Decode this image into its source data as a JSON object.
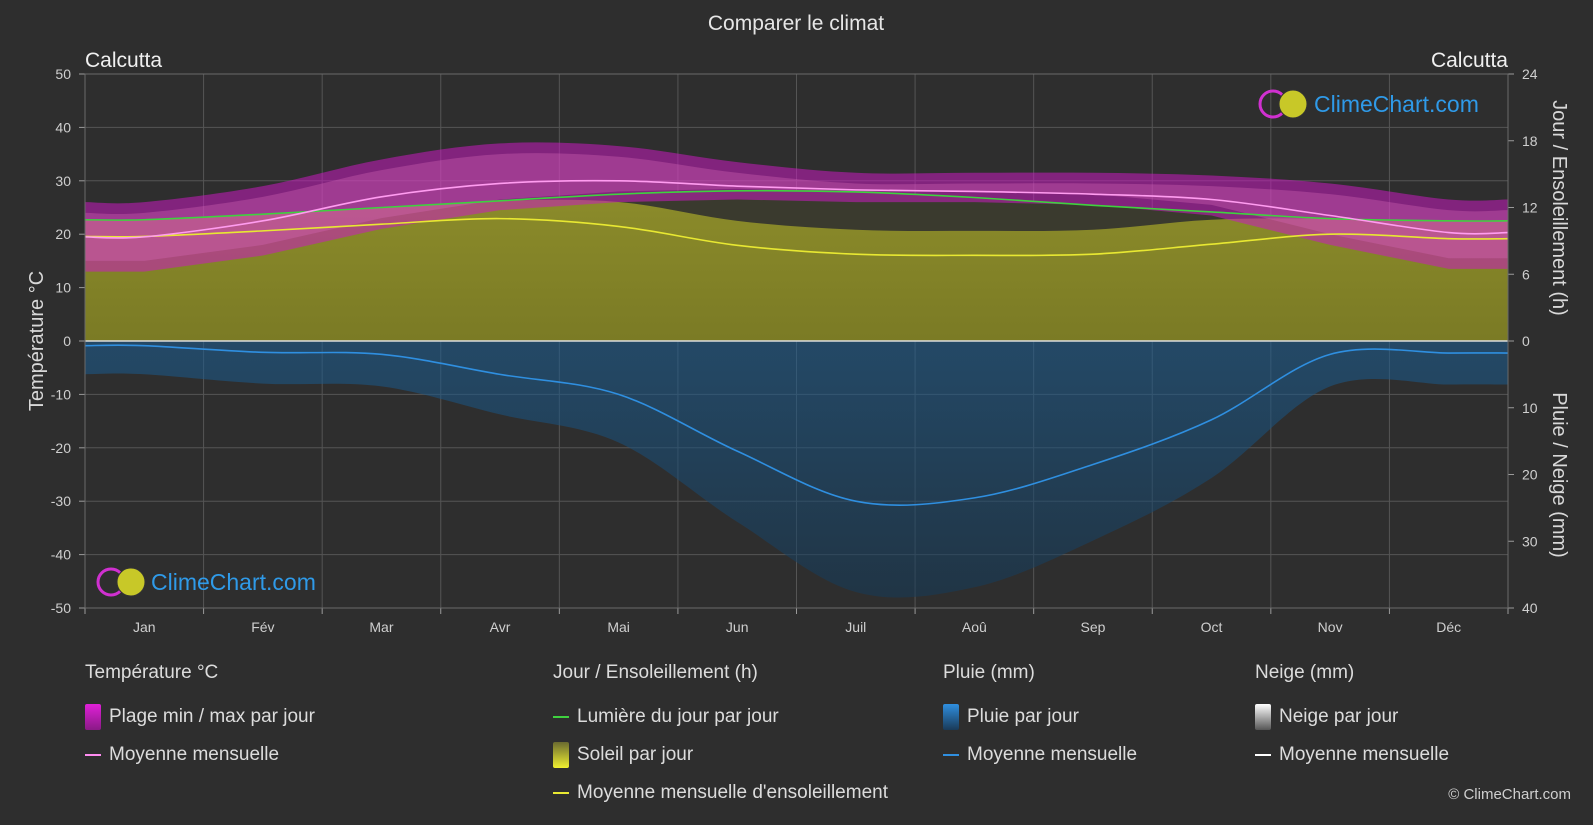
{
  "title": "Comparer le climat",
  "location_left": "Calcutta",
  "location_right": "Calcutta",
  "axis_left_label": "Température °C",
  "axis_right_top_label": "Jour / Ensoleillement (h)",
  "axis_right_bottom_label": "Pluie / Neige (mm)",
  "watermark": "ClimeChart.com",
  "copyright": "© ClimeChart.com",
  "colors": {
    "background": "#2e2e2e",
    "temp_range": "#d020c8",
    "temp_mean": "#ff8cf0",
    "daylight": "#3fd13f",
    "sunshine_fill": "#a8a830",
    "sunshine_mean": "#e8e832",
    "rain_fill": "#1a6aa8",
    "rain_mean": "#2f8fe0",
    "brand": "#2f9ae8"
  },
  "legend": {
    "temperature": {
      "header": "Température °C",
      "range": "Plage min / max par jour",
      "mean": "Moyenne mensuelle"
    },
    "sun": {
      "header": "Jour / Ensoleillement (h)",
      "daylight": "Lumière du jour par jour",
      "sunshine": "Soleil par jour",
      "sunshine_mean": "Moyenne mensuelle d'ensoleillement"
    },
    "rain": {
      "header": "Pluie (mm)",
      "daily": "Pluie par jour",
      "mean": "Moyenne mensuelle"
    },
    "snow": {
      "header": "Neige (mm)",
      "daily": "Neige par jour",
      "mean": "Moyenne mensuelle"
    }
  },
  "chart_data": {
    "type": "area",
    "months": [
      "Jan",
      "Fév",
      "Mar",
      "Avr",
      "Mai",
      "Jun",
      "Juil",
      "Aoû",
      "Sep",
      "Oct",
      "Nov",
      "Déc"
    ],
    "temp_axis": {
      "min": -50,
      "max": 50,
      "ticks": [
        50,
        40,
        30,
        20,
        10,
        0,
        -10,
        -20,
        -30,
        -40,
        -50
      ]
    },
    "sun_axis": {
      "min": 0,
      "max": 24,
      "ticks": [
        24,
        18,
        12,
        6,
        0
      ]
    },
    "rain_axis": {
      "min": 0,
      "max": 40,
      "ticks": [
        0,
        10,
        20,
        30,
        40
      ]
    },
    "series": [
      {
        "name": "Moyenne mensuelle",
        "unit": "°C",
        "values": [
          19.5,
          22.5,
          27,
          29.5,
          30,
          29,
          28.3,
          28,
          27.5,
          26.5,
          23.5,
          20.3
        ]
      },
      {
        "name": "Plage min / max par jour (min)",
        "unit": "°C",
        "values": [
          13,
          16,
          21,
          24.5,
          26,
          26.5,
          26,
          26,
          25.5,
          23.5,
          18,
          13.5
        ]
      },
      {
        "name": "Plage min / max par jour (max)",
        "unit": "°C",
        "values": [
          26,
          29,
          34,
          37,
          36.5,
          33.5,
          31.5,
          31.5,
          31.5,
          31,
          29.5,
          26.5
        ]
      },
      {
        "name": "Lumière du jour par jour",
        "unit": "h",
        "values": [
          10.9,
          11.4,
          12,
          12.6,
          13.2,
          13.5,
          13.4,
          12.9,
          12.2,
          11.6,
          11.0,
          10.8
        ]
      },
      {
        "name": "Moyenne mensuelle d'ensoleillement",
        "unit": "h",
        "values": [
          9.4,
          9.9,
          10.5,
          11.0,
          10.3,
          8.6,
          7.8,
          7.7,
          7.8,
          8.7,
          9.6,
          9.2
        ]
      },
      {
        "name": "Pluie - Moyenne mensuelle",
        "unit": "mm",
        "values": [
          0.7,
          1.7,
          2,
          5,
          8,
          16.5,
          24,
          23.5,
          18.5,
          11.8,
          2,
          1.8
        ]
      }
    ]
  }
}
